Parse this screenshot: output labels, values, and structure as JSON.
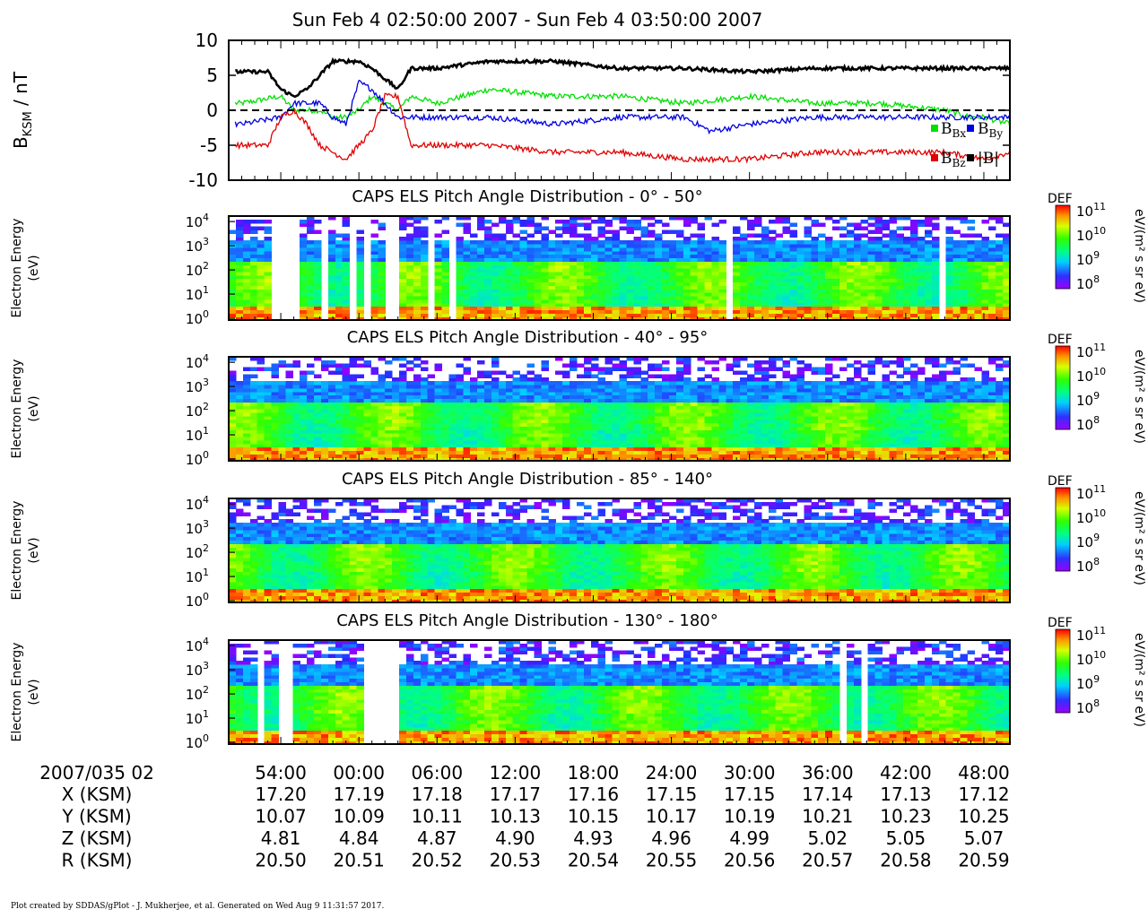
{
  "chart_data": [
    {
      "type": "line",
      "title": "Sun Feb 4 02:50:00 2007 - Sun Feb 4 03:50:00 2007",
      "ylabel": "B_KSM / nT",
      "ylim": [
        -10,
        10
      ],
      "yticks": [
        "10",
        "5",
        "0",
        "-5",
        "-10"
      ],
      "grid": false,
      "reference_line": 0,
      "legend_position": "lower-right",
      "series": [
        {
          "name": "Bx",
          "color": "#00e000",
          "x_min": [
            51,
            54,
            55,
            57,
            58,
            59,
            60,
            61,
            63,
            64,
            66,
            70,
            75,
            80,
            85,
            90,
            95,
            100,
            105,
            107,
            108,
            110
          ],
          "values": [
            1,
            2,
            0,
            0,
            -1,
            -1,
            0,
            2,
            0,
            2,
            1,
            3,
            2,
            2,
            1,
            2,
            1,
            1,
            0,
            -1,
            -1,
            -2
          ]
        },
        {
          "name": "By",
          "color": "#0000e0",
          "x_min": [
            51,
            54,
            55,
            57,
            58,
            59,
            60,
            61,
            63,
            64,
            65,
            70,
            75,
            80,
            85,
            87,
            90,
            95,
            100,
            105,
            108,
            110
          ],
          "values": [
            -2,
            -1,
            1,
            1,
            -1,
            -2,
            4,
            3,
            -1,
            -1,
            -1,
            -1,
            -2,
            -1,
            -1,
            -3,
            -2,
            -1,
            -1,
            -1,
            -1,
            -1
          ]
        },
        {
          "name": "Bz",
          "color": "#e00000",
          "x_min": [
            51,
            53,
            54,
            55,
            56,
            57,
            58,
            59,
            60,
            61,
            62,
            63,
            64,
            66,
            70,
            75,
            80,
            85,
            90,
            95,
            100,
            105,
            108,
            110
          ],
          "values": [
            -5,
            -5,
            -1,
            0,
            -2,
            -5,
            -6,
            -7,
            -5,
            -3,
            2,
            2,
            -5,
            -5,
            -5,
            -6,
            -6,
            -7,
            -7,
            -6,
            -6,
            -6,
            -7,
            -6
          ]
        },
        {
          "name": "|B|",
          "color": "#000000",
          "x_min": [
            51,
            53,
            54,
            55,
            56,
            57,
            58,
            59,
            60,
            61,
            63,
            64,
            66,
            70,
            75,
            80,
            85,
            90,
            95,
            100,
            105,
            108,
            110
          ],
          "values": [
            5.5,
            5.5,
            3,
            2,
            3,
            5,
            7,
            7,
            7,
            6,
            3,
            6,
            6,
            7,
            7,
            6,
            6,
            5.5,
            6,
            6,
            6,
            6,
            6
          ]
        }
      ]
    },
    {
      "type": "heatmap",
      "title": "CAPS ELS Pitch Angle Distribution - 0° - 50°",
      "ylabel": "Electron Energy",
      "yunit": "(eV)",
      "yscale": "log",
      "ylim": [
        1,
        20000
      ],
      "colorbar_label": "DEF",
      "colorbar_unit": "eV/(m² s sr eV)",
      "colorbar_range": [
        100000000,
        100000000000
      ],
      "gaps": [
        [
          53.3,
          54.7
        ],
        [
          54.9,
          55.3
        ],
        [
          57.1,
          57.5
        ],
        [
          59.2,
          59.6
        ],
        [
          60.5,
          60.7
        ],
        [
          62.1,
          62.3
        ],
        [
          62.6,
          63.0
        ],
        [
          63.6,
          63.9
        ],
        [
          64.5,
          64.8
        ],
        [
          65.3,
          65.6
        ],
        [
          66.3,
          66.5
        ],
        [
          67.0,
          67.3
        ],
        [
          69.1,
          69.3
        ],
        [
          88.2,
          88.5
        ],
        [
          89.3,
          89.5
        ],
        [
          90.2,
          90.4
        ],
        [
          103.3,
          103.6
        ],
        [
          103.8,
          104.0
        ],
        [
          104.8,
          105.0
        ]
      ]
    },
    {
      "type": "heatmap",
      "title": "CAPS ELS Pitch Angle Distribution - 40° - 95°",
      "ylabel": "Electron Energy",
      "yunit": "(eV)",
      "yscale": "log",
      "ylim": [
        1,
        20000
      ],
      "colorbar_label": "DEF",
      "colorbar_unit": "eV/(m² s sr eV)",
      "colorbar_range": [
        100000000,
        100000000000
      ],
      "gaps": []
    },
    {
      "type": "heatmap",
      "title": "CAPS ELS Pitch Angle Distribution - 85° - 140°",
      "ylabel": "Electron Energy",
      "yunit": "(eV)",
      "yscale": "log",
      "ylim": [
        1,
        20000
      ],
      "colorbar_label": "DEF",
      "colorbar_unit": "eV/(m² s sr eV)",
      "colorbar_range": [
        100000000,
        100000000000
      ],
      "gaps": []
    },
    {
      "type": "heatmap",
      "title": "CAPS ELS Pitch Angle Distribution - 130° - 180°",
      "ylabel": "Electron Energy",
      "yunit": "(eV)",
      "yscale": "log",
      "ylim": [
        1,
        20000
      ],
      "colorbar_label": "DEF",
      "colorbar_unit": "eV/(m² s sr eV)",
      "colorbar_range": [
        100000000,
        100000000000
      ],
      "gaps": [
        [
          51.4,
          51.6
        ],
        [
          52.0,
          52.1
        ],
        [
          52.4,
          52.6
        ],
        [
          54.0,
          54.2
        ],
        [
          54.5,
          54.8
        ],
        [
          60.4,
          63.2
        ],
        [
          68.6,
          68.8
        ],
        [
          92.3,
          92.6
        ],
        [
          97.0,
          97.2
        ],
        [
          98.5,
          98.7
        ],
        [
          98.8,
          99.0
        ]
      ]
    }
  ],
  "time_axis": {
    "x_range_minutes": [
      50,
      110
    ],
    "tick_minutes": [
      54,
      60,
      66,
      72,
      78,
      84,
      90,
      96,
      102,
      108
    ],
    "header": "2007/035 02",
    "tick_labels": [
      "54:00",
      "00:00",
      "06:00",
      "12:00",
      "18:00",
      "24:00",
      "30:00",
      "36:00",
      "42:00",
      "48:00"
    ],
    "ephemeris": [
      {
        "label": "X (KSM)",
        "values": [
          "17.20",
          "17.19",
          "17.18",
          "17.17",
          "17.16",
          "17.15",
          "17.15",
          "17.14",
          "17.13",
          "17.12"
        ]
      },
      {
        "label": "Y (KSM)",
        "values": [
          "10.07",
          "10.09",
          "10.11",
          "10.13",
          "10.15",
          "10.17",
          "10.19",
          "10.21",
          "10.23",
          "10.25"
        ]
      },
      {
        "label": "Z (KSM)",
        "values": [
          "4.81",
          "4.84",
          "4.87",
          "4.90",
          "4.93",
          "4.96",
          "4.99",
          "5.02",
          "5.05",
          "5.07"
        ]
      },
      {
        "label": "R (KSM)",
        "values": [
          "20.50",
          "20.51",
          "20.52",
          "20.53",
          "20.54",
          "20.55",
          "20.56",
          "20.57",
          "20.58",
          "20.59"
        ]
      }
    ]
  },
  "footer": "Plot created by SDDAS/gPlot - J. Mukherjee, et al.  Generated on Wed Aug 9 11:31:57 2017."
}
